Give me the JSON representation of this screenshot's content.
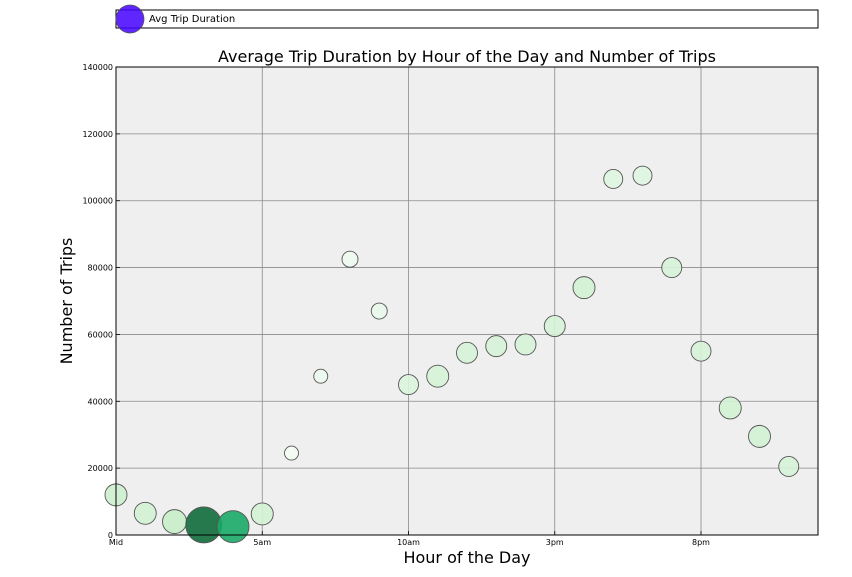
{
  "chart_data": {
    "type": "scatter",
    "title": "Average Trip Duration by Hour of the Day and Number of Trips",
    "xlabel": "Hour of the Day",
    "ylabel": "Number of Trips",
    "xlim": [
      0,
      24
    ],
    "ylim": [
      0,
      140000
    ],
    "x_ticks": [
      {
        "value": 0,
        "label": "Mid"
      },
      {
        "value": 5,
        "label": "5am"
      },
      {
        "value": 10,
        "label": "10am"
      },
      {
        "value": 15,
        "label": "3pm"
      },
      {
        "value": 20,
        "label": "8pm"
      }
    ],
    "y_ticks": [
      0,
      20000,
      40000,
      60000,
      80000,
      100000,
      120000,
      140000
    ],
    "grid": true,
    "plot_background": "#efefef",
    "legend": {
      "placement": "top",
      "entries": [
        {
          "label": "Avg Trip Duration",
          "color": "#4400ff"
        }
      ]
    },
    "series": [
      {
        "name": "Avg Trip Duration",
        "points": [
          {
            "x": 0,
            "y": 12000,
            "size": 11,
            "color": "#cdf0cf"
          },
          {
            "x": 1,
            "y": 6500,
            "size": 11,
            "color": "#d2f2d4"
          },
          {
            "x": 2,
            "y": 4000,
            "size": 12,
            "color": "#c7eec9"
          },
          {
            "x": 3,
            "y": 3000,
            "size": 18,
            "color": "#0e6b3b"
          },
          {
            "x": 4,
            "y": 2500,
            "size": 16,
            "color": "#19a866"
          },
          {
            "x": 5,
            "y": 6300,
            "size": 11,
            "color": "#d2f2d4"
          },
          {
            "x": 6,
            "y": 24500,
            "size": 7,
            "color": "#f3fcf3"
          },
          {
            "x": 7,
            "y": 47500,
            "size": 7,
            "color": "#ecfaed"
          },
          {
            "x": 8,
            "y": 82500,
            "size": 8,
            "color": "#eefaee"
          },
          {
            "x": 9,
            "y": 67000,
            "size": 8,
            "color": "#e9f8ea"
          },
          {
            "x": 10,
            "y": 45000,
            "size": 10,
            "color": "#daf4dc"
          },
          {
            "x": 11,
            "y": 47500,
            "size": 11,
            "color": "#d6f3d8"
          },
          {
            "x": 12,
            "y": 54500,
            "size": 10.5,
            "color": "#d6f3d8"
          },
          {
            "x": 13,
            "y": 56500,
            "size": 10.5,
            "color": "#d6f3d8"
          },
          {
            "x": 14,
            "y": 57000,
            "size": 10.5,
            "color": "#d6f3d8"
          },
          {
            "x": 15,
            "y": 62500,
            "size": 10.5,
            "color": "#d6f3d8"
          },
          {
            "x": 16,
            "y": 74000,
            "size": 11,
            "color": "#d2f2d4"
          },
          {
            "x": 17,
            "y": 106500,
            "size": 9.5,
            "color": "#dff6e0"
          },
          {
            "x": 18,
            "y": 107500,
            "size": 9.5,
            "color": "#dff6e0"
          },
          {
            "x": 19,
            "y": 80000,
            "size": 10,
            "color": "#d6f3d8"
          },
          {
            "x": 20,
            "y": 55000,
            "size": 10,
            "color": "#d6f3d8"
          },
          {
            "x": 21,
            "y": 38000,
            "size": 11,
            "color": "#d2f2d4"
          },
          {
            "x": 22,
            "y": 29500,
            "size": 11,
            "color": "#d2f2d4"
          },
          {
            "x": 23,
            "y": 20500,
            "size": 10,
            "color": "#d6f3d8"
          }
        ]
      }
    ]
  }
}
